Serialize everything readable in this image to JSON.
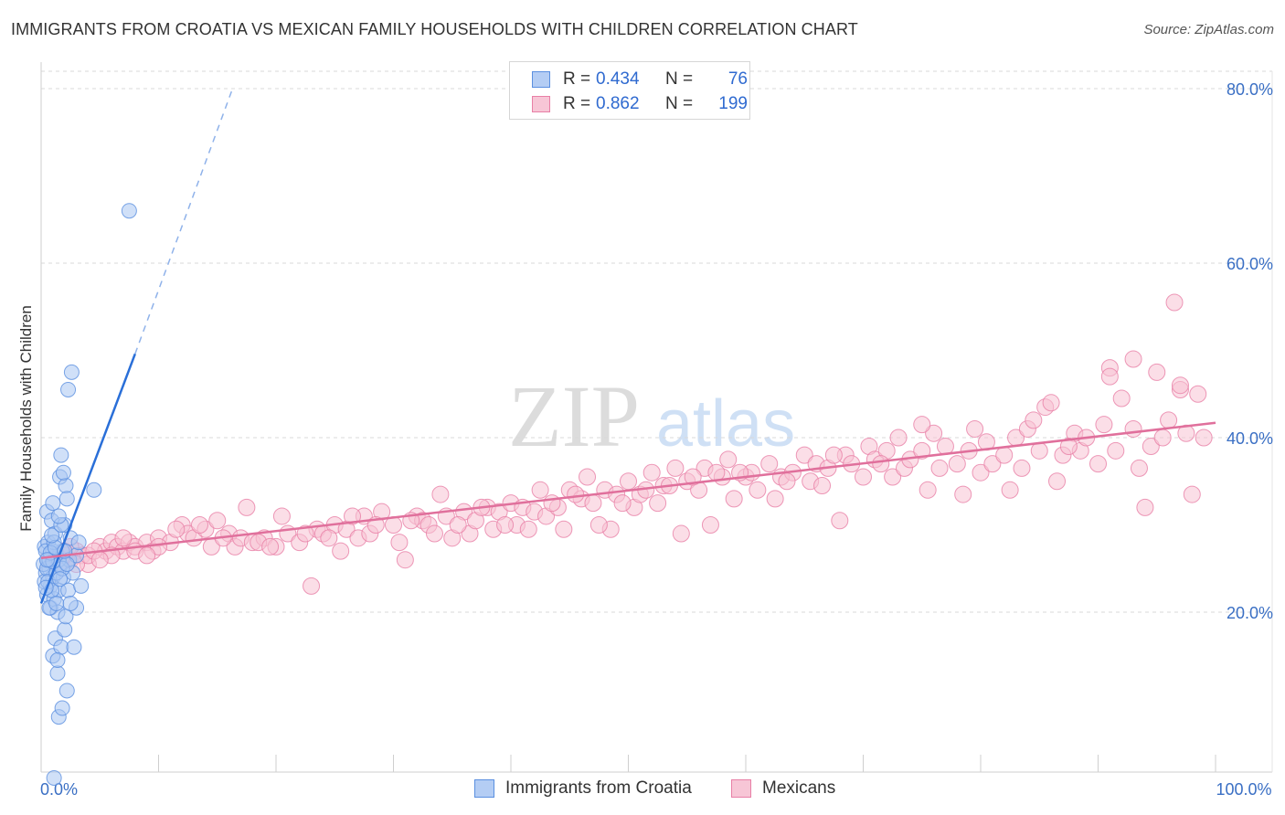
{
  "title": "IMMIGRANTS FROM CROATIA VS MEXICAN FAMILY HOUSEHOLDS WITH CHILDREN CORRELATION CHART",
  "source": "Source: ZipAtlas.com",
  "watermark": {
    "zip": "ZIP",
    "atlas": "atlas"
  },
  "stats": [
    {
      "r_label": "R =",
      "r_value": "0.434",
      "n_label": "N =",
      "n_value": "76"
    },
    {
      "r_label": "R =",
      "r_value": "0.862",
      "n_label": "N =",
      "n_value": "199"
    }
  ],
  "chart_data": {
    "type": "scatter",
    "title": "IMMIGRANTS FROM CROATIA VS MEXICAN FAMILY HOUSEHOLDS WITH CHILDREN CORRELATION CHART",
    "xlabel": "",
    "ylabel": "Family Households with Children",
    "xlim": [
      0,
      100
    ],
    "ylim": [
      0,
      82
    ],
    "x_tick_labels": [
      {
        "value": 0,
        "label": "0.0%"
      },
      {
        "value": 100,
        "label": "100.0%"
      }
    ],
    "x_minor_ticks": [
      10,
      20,
      30,
      40,
      50,
      60,
      70,
      80,
      90,
      100
    ],
    "y_ticks": [
      {
        "value": 20,
        "label": "20.0%"
      },
      {
        "value": 40,
        "label": "40.0%"
      },
      {
        "value": 60,
        "label": "60.0%"
      },
      {
        "value": 80,
        "label": "80.0%"
      }
    ],
    "grid": true,
    "legend_position": "bottom-center",
    "series": [
      {
        "name": "Immigrants from Croatia",
        "color": "#5a8fe0",
        "fill": "#a9c6f2",
        "trendline": {
          "x": [
            0.0,
            8.0
          ],
          "y": [
            21.0,
            49.6
          ],
          "dashed_extension_to": [
            16.3,
            80.0
          ],
          "color": "#2a6fd8"
        },
        "points": [
          [
            0.3,
            27.5
          ],
          [
            0.4,
            24.5
          ],
          [
            0.5,
            22.0
          ],
          [
            0.5,
            31.5
          ],
          [
            0.6,
            26.0
          ],
          [
            0.6,
            28.0
          ],
          [
            0.7,
            25.0
          ],
          [
            0.8,
            23.0
          ],
          [
            0.8,
            20.5
          ],
          [
            0.9,
            30.5
          ],
          [
            1.0,
            27.0
          ],
          [
            1.0,
            15.0
          ],
          [
            1.0,
            24.0
          ],
          [
            1.1,
            21.5
          ],
          [
            1.2,
            17.0
          ],
          [
            1.2,
            29.0
          ],
          [
            1.3,
            26.5
          ],
          [
            1.4,
            20.0
          ],
          [
            1.4,
            13.0
          ],
          [
            1.5,
            8.0
          ],
          [
            1.5,
            22.5
          ],
          [
            1.6,
            25.5
          ],
          [
            1.6,
            35.5
          ],
          [
            1.7,
            38.0
          ],
          [
            1.7,
            16.0
          ],
          [
            1.8,
            9.0
          ],
          [
            1.8,
            27.0
          ],
          [
            1.9,
            24.0
          ],
          [
            2.0,
            30.0
          ],
          [
            2.0,
            18.0
          ],
          [
            2.1,
            34.5
          ],
          [
            2.1,
            19.5
          ],
          [
            2.2,
            11.0
          ],
          [
            2.3,
            22.5
          ],
          [
            2.3,
            45.5
          ],
          [
            2.4,
            26.0
          ],
          [
            2.5,
            28.5
          ],
          [
            2.6,
            47.5
          ],
          [
            2.7,
            24.5
          ],
          [
            2.8,
            16.0
          ],
          [
            3.0,
            20.5
          ],
          [
            3.0,
            26.5
          ],
          [
            3.2,
            28.0
          ],
          [
            3.4,
            23.0
          ],
          [
            0.2,
            25.5
          ],
          [
            0.3,
            23.5
          ],
          [
            0.4,
            27.0
          ],
          [
            0.5,
            25.0
          ],
          [
            0.6,
            23.5
          ],
          [
            0.7,
            26.0
          ],
          [
            0.9,
            22.5
          ],
          [
            1.1,
            28.0
          ],
          [
            1.3,
            24.5
          ],
          [
            1.5,
            26.0
          ],
          [
            1.8,
            25.0
          ],
          [
            1.0,
            25.8
          ],
          [
            2.2,
            25.5
          ],
          [
            0.8,
            26.8
          ],
          [
            1.6,
            23.8
          ],
          [
            1.2,
            27.4
          ],
          [
            2.0,
            27.0
          ],
          [
            0.4,
            22.8
          ],
          [
            0.7,
            20.5
          ],
          [
            1.0,
            32.5
          ],
          [
            1.4,
            14.5
          ],
          [
            1.9,
            36.0
          ],
          [
            2.2,
            33.0
          ],
          [
            4.5,
            34.0
          ],
          [
            7.5,
            66.0
          ],
          [
            1.1,
            1.0
          ],
          [
            1.3,
            21.0
          ],
          [
            2.5,
            21.0
          ],
          [
            0.9,
            28.8
          ],
          [
            1.7,
            30.0
          ],
          [
            1.5,
            31.0
          ],
          [
            0.5,
            26.0
          ]
        ]
      },
      {
        "name": "Mexicans",
        "color": "#e87fa6",
        "fill": "#f7c2d4",
        "trendline": {
          "x": [
            0.0,
            100.0
          ],
          "y": [
            26.2,
            41.7
          ],
          "color": "#e0709c"
        },
        "points": [
          [
            1.0,
            26.0
          ],
          [
            1.5,
            25.5
          ],
          [
            2.0,
            27.0
          ],
          [
            2.5,
            26.0
          ],
          [
            3.0,
            27.0
          ],
          [
            3.5,
            26.5
          ],
          [
            4.0,
            25.5
          ],
          [
            5.0,
            27.5
          ],
          [
            5.5,
            27.0
          ],
          [
            6.0,
            28.0
          ],
          [
            6.5,
            27.5
          ],
          [
            7.0,
            27.0
          ],
          [
            7.5,
            28.0
          ],
          [
            8.0,
            27.5
          ],
          [
            9.0,
            28.0
          ],
          [
            9.5,
            27.0
          ],
          [
            10.0,
            28.5
          ],
          [
            11.0,
            28.0
          ],
          [
            12.0,
            30.0
          ],
          [
            12.5,
            29.0
          ],
          [
            13.0,
            28.5
          ],
          [
            14.0,
            29.5
          ],
          [
            14.5,
            27.5
          ],
          [
            15.0,
            30.5
          ],
          [
            16.0,
            29.0
          ],
          [
            16.5,
            27.5
          ],
          [
            17.0,
            28.5
          ],
          [
            17.5,
            32.0
          ],
          [
            18.0,
            28.0
          ],
          [
            19.0,
            28.5
          ],
          [
            20.0,
            27.5
          ],
          [
            20.5,
            31.0
          ],
          [
            21.0,
            29.0
          ],
          [
            22.0,
            28.0
          ],
          [
            23.0,
            23.0
          ],
          [
            23.5,
            29.5
          ],
          [
            24.0,
            29.0
          ],
          [
            25.0,
            30.0
          ],
          [
            25.5,
            27.0
          ],
          [
            26.0,
            29.5
          ],
          [
            27.0,
            28.5
          ],
          [
            27.5,
            31.0
          ],
          [
            28.0,
            29.0
          ],
          [
            29.0,
            31.5
          ],
          [
            30.0,
            30.0
          ],
          [
            30.5,
            28.0
          ],
          [
            31.0,
            26.0
          ],
          [
            32.0,
            31.0
          ],
          [
            32.5,
            30.5
          ],
          [
            33.0,
            30.0
          ],
          [
            34.0,
            33.5
          ],
          [
            34.5,
            31.0
          ],
          [
            35.0,
            28.5
          ],
          [
            36.0,
            31.5
          ],
          [
            36.5,
            29.0
          ],
          [
            37.0,
            30.5
          ],
          [
            38.0,
            32.0
          ],
          [
            38.5,
            29.5
          ],
          [
            39.0,
            31.5
          ],
          [
            40.0,
            32.5
          ],
          [
            40.5,
            30.0
          ],
          [
            41.0,
            32.0
          ],
          [
            42.0,
            31.5
          ],
          [
            42.5,
            34.0
          ],
          [
            43.0,
            31.0
          ],
          [
            44.0,
            32.0
          ],
          [
            44.5,
            29.5
          ],
          [
            45.0,
            34.0
          ],
          [
            46.0,
            33.0
          ],
          [
            46.5,
            35.5
          ],
          [
            47.0,
            32.5
          ],
          [
            48.0,
            34.0
          ],
          [
            48.5,
            29.5
          ],
          [
            49.0,
            33.5
          ],
          [
            50.0,
            35.0
          ],
          [
            50.5,
            32.0
          ],
          [
            51.0,
            33.5
          ],
          [
            52.0,
            36.0
          ],
          [
            52.5,
            32.5
          ],
          [
            53.0,
            34.5
          ],
          [
            54.0,
            36.5
          ],
          [
            54.5,
            29.0
          ],
          [
            55.0,
            35.0
          ],
          [
            56.0,
            34.0
          ],
          [
            56.5,
            36.5
          ],
          [
            57.0,
            30.0
          ],
          [
            58.0,
            35.5
          ],
          [
            58.5,
            37.5
          ],
          [
            59.0,
            33.0
          ],
          [
            60.0,
            35.5
          ],
          [
            60.5,
            36.0
          ],
          [
            61.0,
            34.0
          ],
          [
            62.0,
            37.0
          ],
          [
            62.5,
            33.0
          ],
          [
            63.0,
            35.5
          ],
          [
            64.0,
            36.0
          ],
          [
            65.0,
            38.0
          ],
          [
            65.5,
            35.0
          ],
          [
            66.0,
            37.0
          ],
          [
            66.5,
            34.5
          ],
          [
            67.0,
            36.5
          ],
          [
            68.0,
            30.5
          ],
          [
            68.5,
            38.0
          ],
          [
            69.0,
            37.0
          ],
          [
            70.0,
            35.5
          ],
          [
            70.5,
            39.0
          ],
          [
            71.0,
            37.5
          ],
          [
            72.0,
            38.5
          ],
          [
            72.5,
            35.5
          ],
          [
            73.0,
            40.0
          ],
          [
            73.5,
            36.5
          ],
          [
            74.0,
            37.5
          ],
          [
            75.0,
            38.5
          ],
          [
            75.5,
            34.0
          ],
          [
            76.0,
            40.5
          ],
          [
            76.5,
            36.5
          ],
          [
            77.0,
            39.0
          ],
          [
            78.0,
            37.0
          ],
          [
            78.5,
            33.5
          ],
          [
            79.0,
            38.5
          ],
          [
            80.0,
            36.0
          ],
          [
            80.5,
            39.5
          ],
          [
            81.0,
            37.0
          ],
          [
            82.0,
            38.0
          ],
          [
            82.5,
            34.0
          ],
          [
            83.0,
            40.0
          ],
          [
            83.5,
            36.5
          ],
          [
            84.0,
            41.0
          ],
          [
            85.0,
            38.5
          ],
          [
            85.5,
            43.5
          ],
          [
            86.0,
            44.0
          ],
          [
            86.5,
            35.0
          ],
          [
            87.0,
            38.0
          ],
          [
            88.0,
            40.5
          ],
          [
            88.5,
            38.5
          ],
          [
            89.0,
            40.0
          ],
          [
            90.0,
            37.0
          ],
          [
            90.5,
            41.5
          ],
          [
            91.0,
            48.0
          ],
          [
            91.5,
            38.5
          ],
          [
            92.0,
            44.5
          ],
          [
            93.0,
            41.0
          ],
          [
            93.5,
            36.5
          ],
          [
            94.0,
            32.0
          ],
          [
            94.5,
            39.0
          ],
          [
            95.0,
            47.5
          ],
          [
            95.5,
            40.0
          ],
          [
            96.0,
            42.0
          ],
          [
            96.5,
            55.5
          ],
          [
            97.0,
            45.5
          ],
          [
            97.5,
            40.5
          ],
          [
            98.0,
            33.5
          ],
          [
            98.5,
            45.0
          ],
          [
            99.0,
            40.0
          ],
          [
            2.0,
            26.5
          ],
          [
            3.0,
            25.5
          ],
          [
            4.0,
            26.5
          ],
          [
            6.0,
            26.5
          ],
          [
            8.0,
            27.0
          ],
          [
            10.0,
            27.5
          ],
          [
            15.5,
            28.5
          ],
          [
            18.5,
            28.0
          ],
          [
            22.5,
            29.0
          ],
          [
            26.5,
            31.0
          ],
          [
            31.5,
            30.5
          ],
          [
            35.5,
            30.0
          ],
          [
            39.5,
            30.0
          ],
          [
            43.5,
            32.5
          ],
          [
            47.5,
            30.0
          ],
          [
            51.5,
            34.0
          ],
          [
            55.5,
            35.5
          ],
          [
            59.5,
            36.0
          ],
          [
            63.5,
            35.0
          ],
          [
            67.5,
            38.0
          ],
          [
            71.5,
            37.0
          ],
          [
            75.0,
            41.5
          ],
          [
            79.5,
            41.0
          ],
          [
            84.5,
            42.0
          ],
          [
            87.5,
            39.0
          ],
          [
            91.0,
            47.0
          ],
          [
            93.0,
            49.0
          ],
          [
            97.0,
            46.0
          ],
          [
            2.5,
            27.5
          ],
          [
            4.5,
            27.0
          ],
          [
            5.0,
            26.0
          ],
          [
            7.0,
            28.5
          ],
          [
            9.0,
            26.5
          ],
          [
            11.5,
            29.5
          ],
          [
            13.5,
            30.0
          ],
          [
            19.5,
            27.5
          ],
          [
            24.5,
            28.5
          ],
          [
            28.5,
            30.0
          ],
          [
            33.5,
            29.0
          ],
          [
            37.5,
            32.0
          ],
          [
            41.5,
            29.5
          ],
          [
            45.5,
            33.5
          ],
          [
            49.5,
            32.5
          ],
          [
            53.5,
            34.5
          ],
          [
            57.5,
            36.0
          ]
        ]
      }
    ]
  }
}
